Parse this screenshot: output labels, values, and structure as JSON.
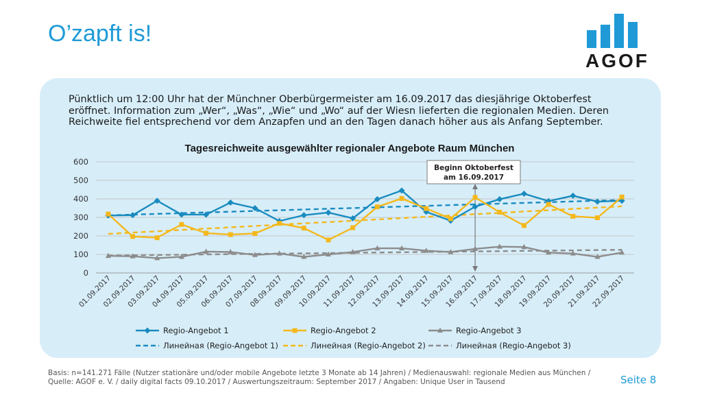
{
  "page": {
    "title": "O’zapft is!",
    "logo_text": "AGOF",
    "intro": "Pünktlich um 12:00 Uhr hat der Münchner Oberbürgermeister am 16.09.2017 das diesjährige Oktoberfest eröffnet. Information zum „Wer“, „Was“, „Wie“ und „Wo“ auf der Wiesn lieferten die regionalen Medien. Deren Reichweite fiel entsprechend vor dem Anzapfen und an den Tagen danach höher aus als Anfang September.",
    "footer_line1": "Basis: n=141.271 Fälle (Nutzer stationäre und/oder mobile Angebote letzte 3 Monate ab 14 Jahren) / Medienauswahl: regionale Medien aus München /",
    "footer_line2": "Quelle: AGOF e. V. / daily digital facts 09.10.2017 / Auswertungszeitraum: September 2017 / Angaben: Unique User in Tausend",
    "page_number": "Seite 8",
    "colors": {
      "accent": "#1f9ad6",
      "panel": "#d7eef9"
    }
  },
  "chart_data": {
    "type": "line",
    "title": "Tagesreichweite ausgewählter regionaler Angebote Raum München",
    "xlabel": "",
    "ylabel": "",
    "ylim": [
      0,
      600
    ],
    "yticks": [
      0,
      100,
      200,
      300,
      400,
      500,
      600
    ],
    "grid": true,
    "legend_position": "bottom",
    "categories": [
      "01.09.2017",
      "02.09.2017",
      "03.09.2017",
      "04.09.2017",
      "05.09.2017",
      "06.09.2017",
      "07.09.2017",
      "08.09.2017",
      "09.09.2017",
      "10.09.2017",
      "11.09.2017",
      "12.09.2017",
      "13.09.2017",
      "14.09.2017",
      "15.09.2017",
      "16.09.2017",
      "17.09.2017",
      "18.09.2017",
      "19.09.2017",
      "20.09.2017",
      "21.09.2017",
      "22.09.2017"
    ],
    "series": [
      {
        "name": "Regio-Angebot 1",
        "color": "#1a8bbf",
        "marker": "diamond",
        "values": [
          310,
          312,
          390,
          315,
          315,
          380,
          350,
          280,
          312,
          326,
          295,
          398,
          445,
          330,
          282,
          358,
          398,
          428,
          388,
          417,
          385,
          390
        ]
      },
      {
        "name": "Regio-Angebot 2",
        "color": "#f4b81c",
        "marker": "square",
        "values": [
          318,
          197,
          190,
          262,
          215,
          207,
          213,
          268,
          242,
          178,
          244,
          357,
          402,
          348,
          293,
          408,
          328,
          256,
          370,
          306,
          298,
          410
        ]
      },
      {
        "name": "Regio-Angebot 3",
        "color": "#8c8c8c",
        "marker": "triangle",
        "values": [
          92,
          90,
          80,
          87,
          115,
          113,
          97,
          105,
          87,
          100,
          113,
          133,
          133,
          120,
          113,
          130,
          142,
          140,
          110,
          105,
          87,
          110
        ]
      }
    ],
    "trendlines": [
      {
        "name": "Линейная (Regio-Angebot 1)",
        "color": "#1a8bbf",
        "start": 311,
        "end": 394
      },
      {
        "name": "Линейная (Regio-Angebot 2)",
        "color": "#f4b81c",
        "start": 211,
        "end": 360
      },
      {
        "name": "Линейная (Regio-Angebot 3)",
        "color": "#8c8c8c",
        "start": 94,
        "end": 125
      }
    ],
    "annotation": {
      "line1": "Beginn Oktoberfest",
      "line2": "am 16.09.2017",
      "category_index": 15
    }
  }
}
